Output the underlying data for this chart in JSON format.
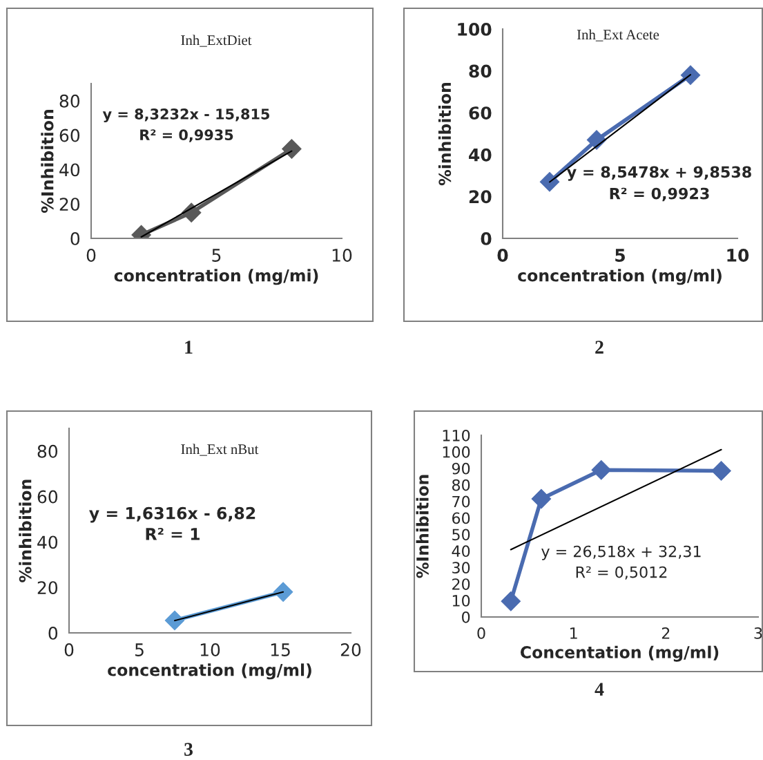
{
  "chart_data": [
    {
      "type": "line",
      "title": "Inh_ExtDiet",
      "xlabel": "concentration (mg/mi)",
      "ylabel": "%Inhibition",
      "xlim": [
        0,
        10
      ],
      "xticks": [
        0,
        5,
        10
      ],
      "ylim": [
        0,
        90
      ],
      "yticks": [
        0,
        20,
        40,
        60,
        80
      ],
      "grid": false,
      "legend": false,
      "marker": "diamond",
      "line_style": "solid",
      "annotations": [
        "y = 8,3232x - 15,815",
        "R² = 0,9935",
        "1"
      ],
      "series": [
        {
          "color": "#595959",
          "x": [
            2,
            4,
            8
          ],
          "values": [
            2,
            15,
            52
          ]
        },
        {
          "type": "line",
          "marker": "none",
          "color": "#000000",
          "x": [
            2,
            8
          ],
          "values": [
            0.8,
            50.8
          ]
        }
      ]
    },
    {
      "type": "line",
      "title": "Inh_Ext Acete",
      "xlabel": "concentration (mg/ml)",
      "ylabel": "%inhibition",
      "xlim": [
        0,
        10
      ],
      "xticks": [
        0,
        5,
        10
      ],
      "ylim": [
        0,
        100
      ],
      "yticks": [
        0,
        20,
        40,
        60,
        80,
        100
      ],
      "grid": false,
      "legend": false,
      "marker": "diamond",
      "line_style": "solid",
      "annotations": [
        "y = 8,5478x + 9,8538",
        "R² = 0,9923",
        "2"
      ],
      "series": [
        {
          "color": "#4a6bb0",
          "x": [
            2,
            4,
            8
          ],
          "values": [
            27,
            47,
            78
          ]
        },
        {
          "type": "line",
          "marker": "none",
          "color": "#000000",
          "x": [
            2,
            8
          ],
          "values": [
            26.9,
            78.2
          ]
        }
      ]
    },
    {
      "type": "line",
      "title": "Inh_Ext nBut",
      "xlabel": "concentration (mg/ml)",
      "ylabel": "%inhibition",
      "xlim": [
        0,
        20
      ],
      "xticks": [
        0,
        5,
        10,
        15,
        20
      ],
      "ylim": [
        0,
        90
      ],
      "yticks": [
        0,
        20,
        40,
        60,
        80
      ],
      "grid": false,
      "legend": false,
      "marker": "diamond",
      "line_style": "solid",
      "annotations": [
        "y = 1,6316x - 6,82",
        "R² = 1",
        "3"
      ],
      "series": [
        {
          "color": "#5b9bd5",
          "x": [
            7.5,
            15.2
          ],
          "values": [
            5.5,
            18
          ]
        },
        {
          "type": "line",
          "marker": "none",
          "color": "#000000",
          "x": [
            7.5,
            15.2
          ],
          "values": [
            5.4,
            18
          ]
        }
      ]
    },
    {
      "type": "line",
      "xlabel": "Concentation (mg/ml)",
      "ylabel": "%Inhibition",
      "xlim": [
        0,
        3
      ],
      "xticks": [
        0,
        1,
        2,
        3
      ],
      "ylim": [
        0,
        110
      ],
      "yticks": [
        0,
        10,
        20,
        30,
        40,
        50,
        60,
        70,
        80,
        90,
        100,
        110
      ],
      "grid": false,
      "legend": false,
      "marker": "diamond",
      "line_style": "solid",
      "annotations": [
        "y = 26,518x + 32,31",
        "R² = 0,5012",
        "4"
      ],
      "series": [
        {
          "color": "#4a6bb0",
          "x": [
            0.32,
            0.65,
            1.3,
            2.6
          ],
          "values": [
            9.5,
            71.5,
            89,
            88.5
          ]
        },
        {
          "type": "line",
          "marker": "none",
          "color": "#000000",
          "x": [
            0.32,
            2.6
          ],
          "values": [
            40.8,
            101.3
          ]
        }
      ]
    }
  ]
}
